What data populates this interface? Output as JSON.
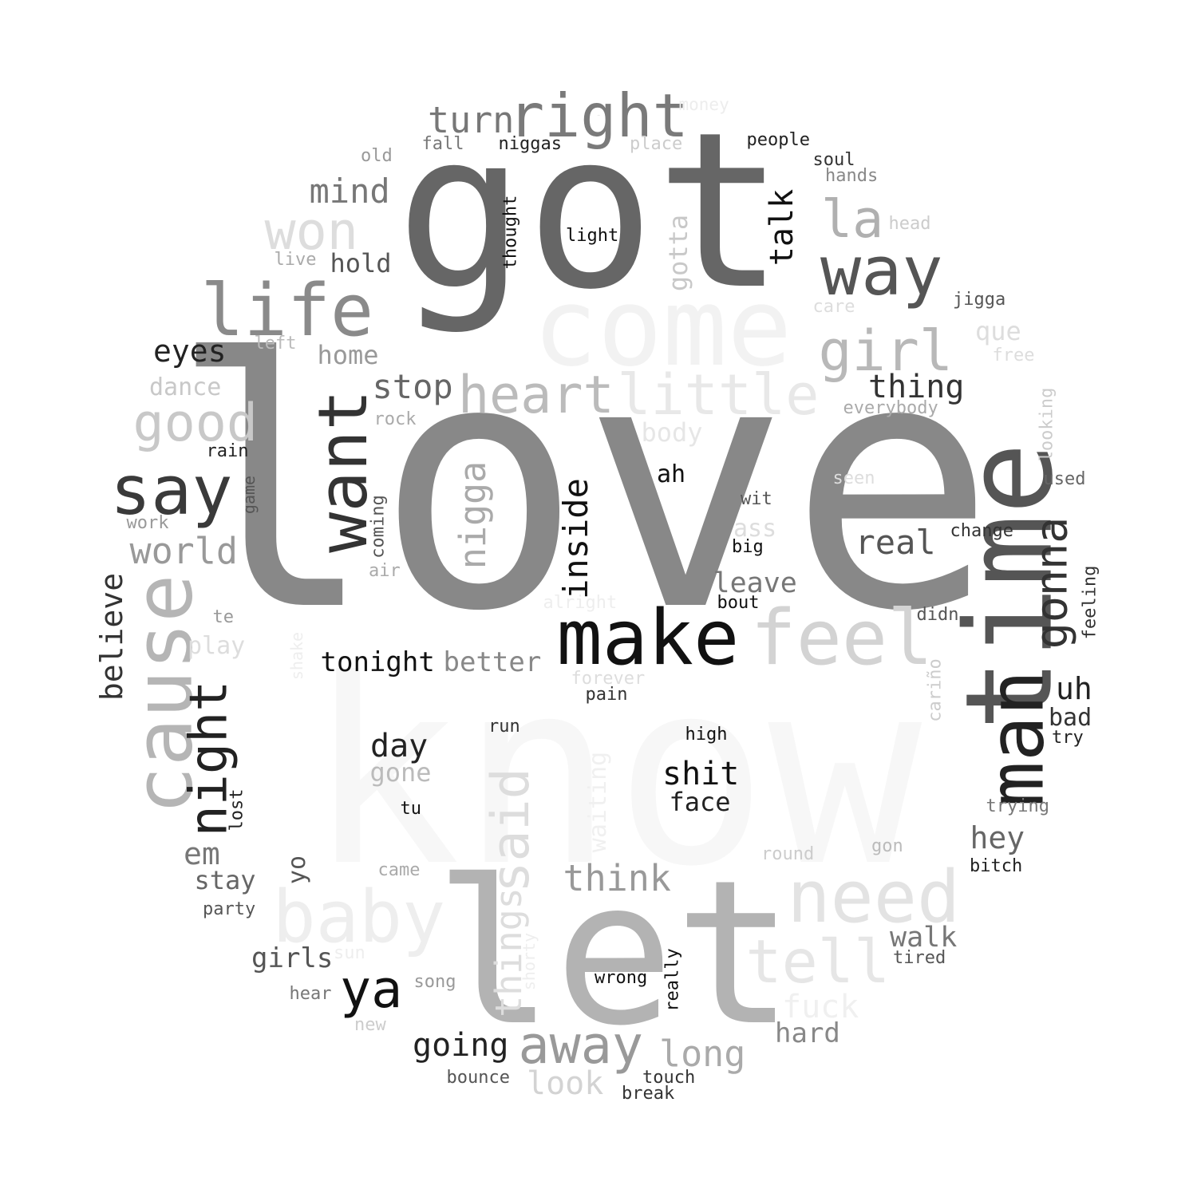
{
  "words": [
    {
      "text": "love",
      "color": "#888888"
    },
    {
      "text": "know",
      "color": "#f7f7f7"
    },
    {
      "text": "got",
      "color": "#666666"
    },
    {
      "text": "let",
      "color": "#b3b3b3"
    },
    {
      "text": "come",
      "color": "#f2f2f2"
    },
    {
      "text": "time",
      "color": "#555555"
    },
    {
      "text": "make",
      "color": "#111111"
    },
    {
      "text": "feel",
      "color": "#d3d3d3"
    },
    {
      "text": "man",
      "color": "#222222"
    },
    {
      "text": "baby",
      "color": "#eeeeee"
    },
    {
      "text": "want",
      "color": "#333333"
    },
    {
      "text": "way",
      "color": "#555555"
    },
    {
      "text": "right",
      "color": "#7a7a7a"
    },
    {
      "text": "life",
      "color": "#8a8a8a"
    },
    {
      "text": "cause",
      "color": "#b5b5b5"
    },
    {
      "text": "need",
      "color": "#e3e3e3"
    },
    {
      "text": "say",
      "color": "#3a3a3a"
    },
    {
      "text": "heart",
      "color": "#bbbbbb"
    },
    {
      "text": "little",
      "color": "#e8e8e8"
    },
    {
      "text": "girl",
      "color": "#b8b8b8"
    },
    {
      "text": "night",
      "color": "#222222"
    },
    {
      "text": "away",
      "color": "#999999"
    },
    {
      "text": "tell",
      "color": "#e6e6e6"
    },
    {
      "text": "good",
      "color": "#c8c8c8"
    },
    {
      "text": "won",
      "color": "#dddddd"
    },
    {
      "text": "gonna",
      "color": "#333333"
    },
    {
      "text": "la",
      "color": "#b0b0b0"
    },
    {
      "text": "ya",
      "color": "#111111"
    },
    {
      "text": "said",
      "color": "#dddddd"
    },
    {
      "text": "think",
      "color": "#999999"
    },
    {
      "text": "nigga",
      "color": "#aaaaaa"
    },
    {
      "text": "inside",
      "color": "#111111"
    },
    {
      "text": "turn",
      "color": "#777777"
    },
    {
      "text": "real",
      "color": "#555555"
    },
    {
      "text": "stop",
      "color": "#666666"
    },
    {
      "text": "mind",
      "color": "#777777"
    },
    {
      "text": "world",
      "color": "#999999"
    },
    {
      "text": "long",
      "color": "#aaaaaa"
    },
    {
      "text": "thing",
      "color": "#333333"
    },
    {
      "text": "eyes",
      "color": "#222222"
    },
    {
      "text": "shit",
      "color": "#111111"
    },
    {
      "text": "day",
      "color": "#222222"
    },
    {
      "text": "going",
      "color": "#222222"
    },
    {
      "text": "things",
      "color": "#dddddd"
    },
    {
      "text": "look",
      "color": "#d3d3d3"
    },
    {
      "text": "talk",
      "color": "#111111"
    },
    {
      "text": "believe",
      "color": "#333333"
    },
    {
      "text": "fuck",
      "color": "#f0f0f0"
    },
    {
      "text": "hey",
      "color": "#666666"
    },
    {
      "text": "uh",
      "color": "#222222"
    },
    {
      "text": "em",
      "color": "#777777"
    },
    {
      "text": "leave",
      "color": "#777777"
    },
    {
      "text": "walk",
      "color": "#777777"
    },
    {
      "text": "tonight",
      "color": "#111111"
    },
    {
      "text": "better",
      "color": "#888888"
    },
    {
      "text": "girls",
      "color": "#555555"
    },
    {
      "text": "hard",
      "color": "#888888"
    },
    {
      "text": "home",
      "color": "#999999"
    },
    {
      "text": "body",
      "color": "#e6e6e6"
    },
    {
      "text": "gone",
      "color": "#bbbbbb"
    },
    {
      "text": "stay",
      "color": "#666666"
    },
    {
      "text": "face",
      "color": "#222222"
    },
    {
      "text": "yo",
      "color": "#555555"
    },
    {
      "text": "hold",
      "color": "#555555"
    },
    {
      "text": "gotta",
      "color": "#c8c8c8"
    },
    {
      "text": "que",
      "color": "#dddddd"
    },
    {
      "text": "bad",
      "color": "#333333"
    },
    {
      "text": "dance",
      "color": "#c8c8c8"
    },
    {
      "text": "play",
      "color": "#dddddd"
    },
    {
      "text": "ah",
      "color": "#111111"
    },
    {
      "text": "ass",
      "color": "#dddddd"
    },
    {
      "text": "waiting",
      "color": "#f0f0f0"
    },
    {
      "text": "right",
      "color": "#7a7a7a"
    },
    {
      "text": "money",
      "color": "#ededed"
    },
    {
      "text": "fall",
      "color": "#777777"
    },
    {
      "text": "niggas",
      "color": "#222222"
    },
    {
      "text": "place",
      "color": "#cccccc"
    },
    {
      "text": "people",
      "color": "#222222"
    },
    {
      "text": "soul",
      "color": "#333333"
    },
    {
      "text": "hands",
      "color": "#888888"
    },
    {
      "text": "old",
      "color": "#999999"
    },
    {
      "text": "thought",
      "color": "#111111"
    },
    {
      "text": "light",
      "color": "#111111"
    },
    {
      "text": "head",
      "color": "#cccccc"
    },
    {
      "text": "live",
      "color": "#aaaaaa"
    },
    {
      "text": "jigga",
      "color": "#555555"
    },
    {
      "text": "care",
      "color": "#dddddd"
    },
    {
      "text": "left",
      "color": "#bbbbbb"
    },
    {
      "text": "free",
      "color": "#dddddd"
    },
    {
      "text": "everybody",
      "color": "#aaaaaa"
    },
    {
      "text": "looking",
      "color": "#cccccc"
    },
    {
      "text": "rock",
      "color": "#aaaaaa"
    },
    {
      "text": "rain",
      "color": "#222222"
    },
    {
      "text": "seen",
      "color": "#dddddd"
    },
    {
      "text": "used",
      "color": "#666666"
    },
    {
      "text": "game",
      "color": "#555555"
    },
    {
      "text": "wit",
      "color": "#555555"
    },
    {
      "text": "work",
      "color": "#999999"
    },
    {
      "text": "coming",
      "color": "#555555"
    },
    {
      "text": "change",
      "color": "#333333"
    },
    {
      "text": "big",
      "color": "#111111"
    },
    {
      "text": "air",
      "color": "#aaaaaa"
    },
    {
      "text": "feeling",
      "color": "#333333"
    },
    {
      "text": "alright",
      "color": "#eeeeee"
    },
    {
      "text": "bout",
      "color": "#111111"
    },
    {
      "text": "te",
      "color": "#999999"
    },
    {
      "text": "didn",
      "color": "#555555"
    },
    {
      "text": "shake",
      "color": "#eeeeee"
    },
    {
      "text": "forever",
      "color": "#dddddd"
    },
    {
      "text": "pain",
      "color": "#333333"
    },
    {
      "text": "cariño",
      "color": "#cccccc"
    },
    {
      "text": "run",
      "color": "#333333"
    },
    {
      "text": "high",
      "color": "#111111"
    },
    {
      "text": "try",
      "color": "#222222"
    },
    {
      "text": "lost",
      "color": "#222222"
    },
    {
      "text": "tu",
      "color": "#111111"
    },
    {
      "text": "trying",
      "color": "#777777"
    },
    {
      "text": "round",
      "color": "#cccccc"
    },
    {
      "text": "gon",
      "color": "#bbbbbb"
    },
    {
      "text": "bitch",
      "color": "#222222"
    },
    {
      "text": "came",
      "color": "#aaaaaa"
    },
    {
      "text": "party",
      "color": "#555555"
    },
    {
      "text": "tired",
      "color": "#555555"
    },
    {
      "text": "sun",
      "color": "#eeeeee"
    },
    {
      "text": "shorty",
      "color": "#eeeeee"
    },
    {
      "text": "song",
      "color": "#999999"
    },
    {
      "text": "wrong",
      "color": "#111111"
    },
    {
      "text": "really",
      "color": "#111111"
    },
    {
      "text": "hear",
      "color": "#777777"
    },
    {
      "text": "new",
      "color": "#cccccc"
    },
    {
      "text": "bounce",
      "color": "#555555"
    },
    {
      "text": "touch",
      "color": "#333333"
    },
    {
      "text": "break",
      "color": "#333333"
    }
  ]
}
